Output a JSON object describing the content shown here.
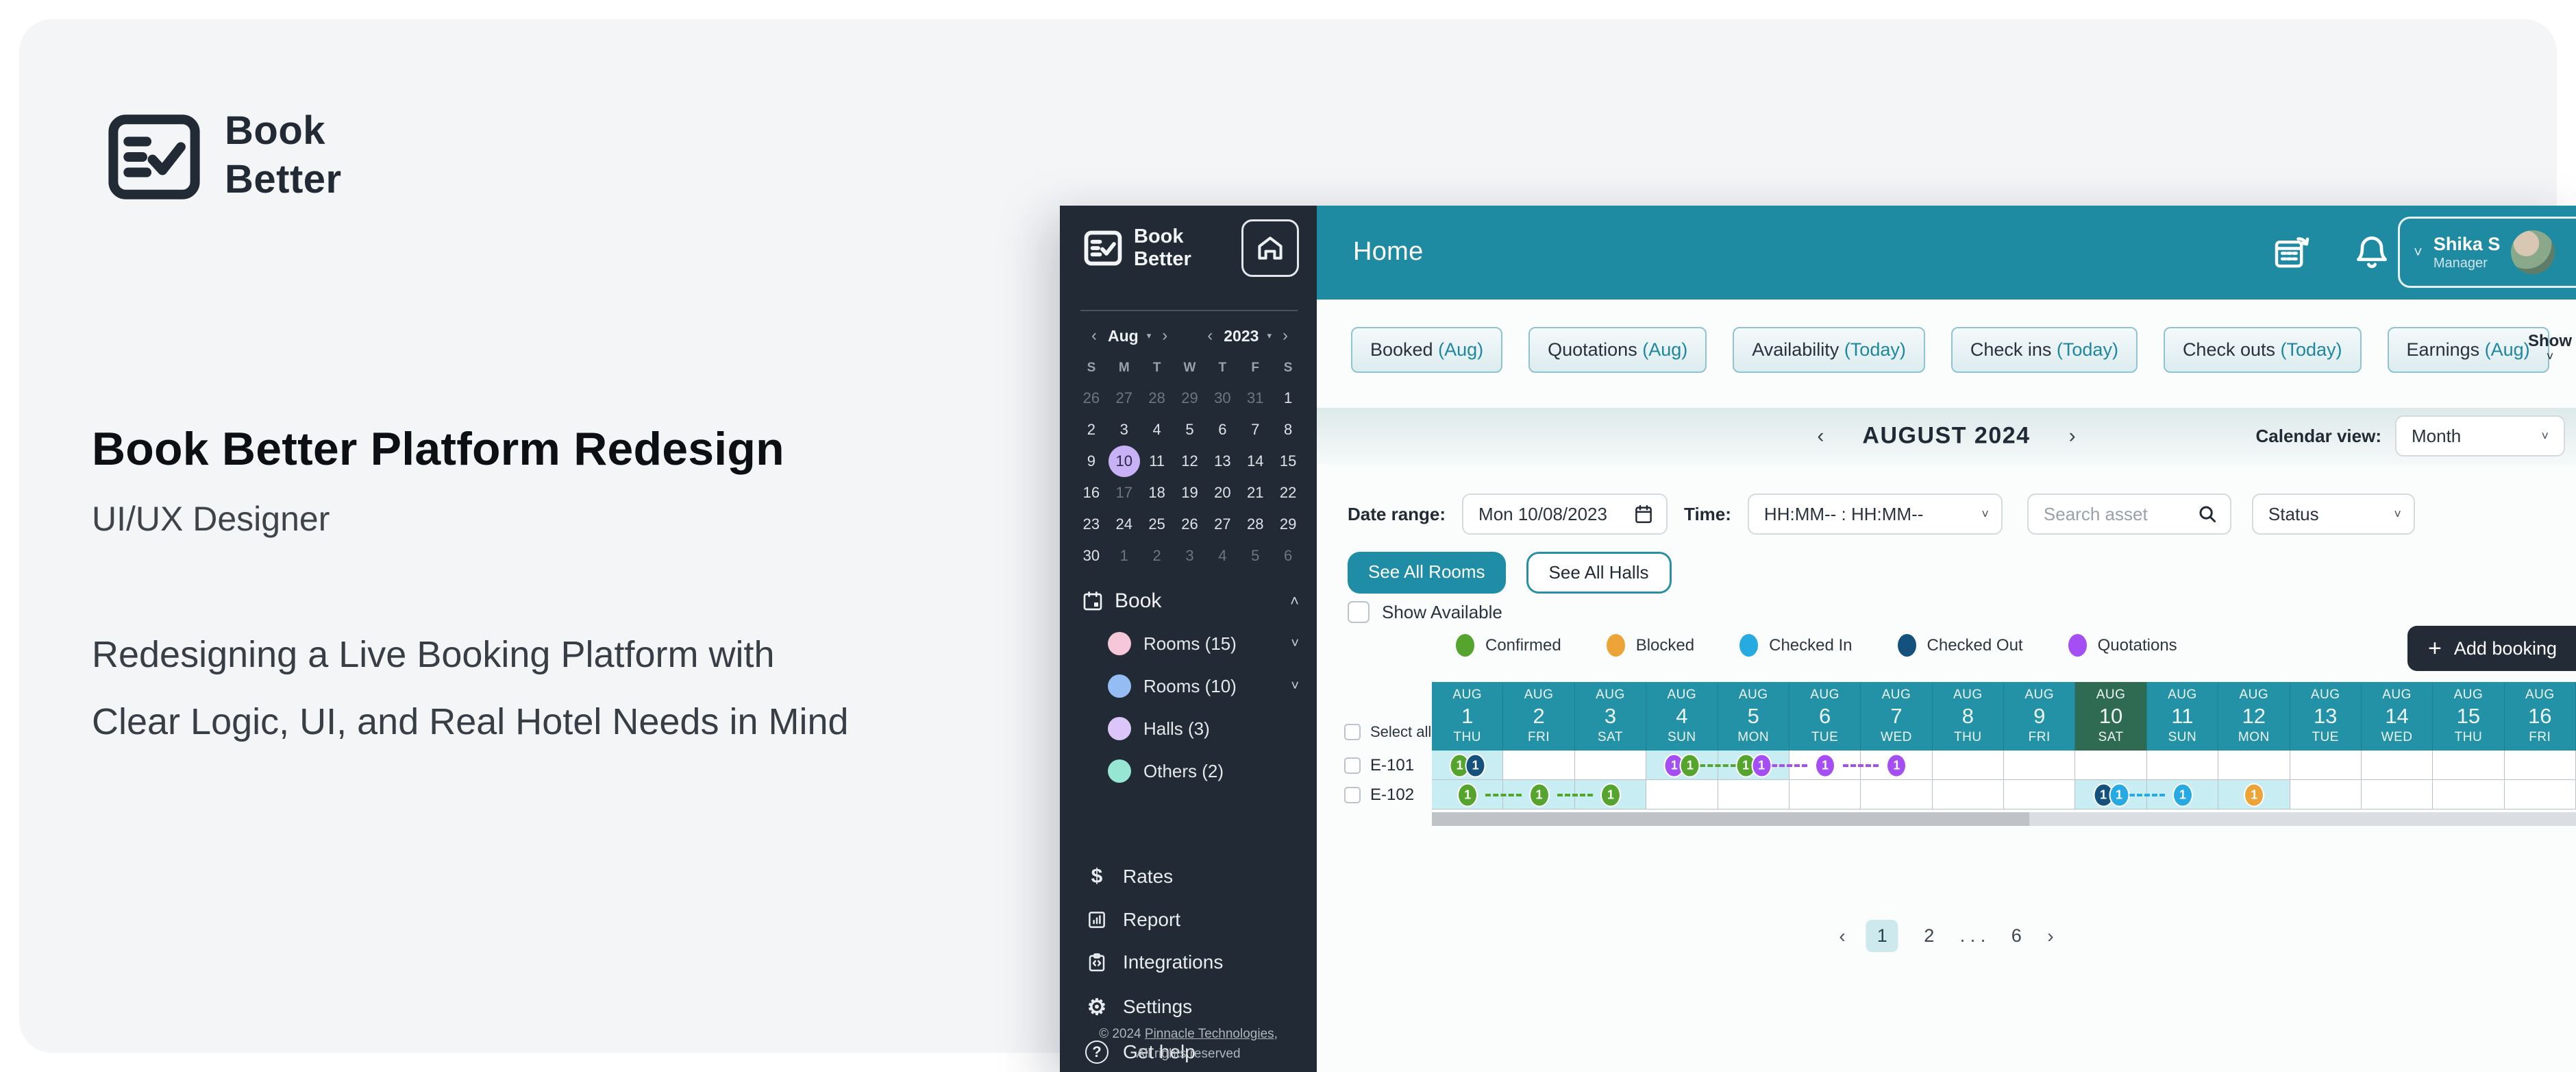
{
  "hero": {
    "brand_line1": "Book",
    "brand_line2": "Better",
    "title": "Book Better Platform Redesign",
    "subtitle": "UI/UX Designer",
    "description_line1": "Redesigning a Live Booking Platform with",
    "description_line2": "Clear Logic, UI, and Real Hotel Needs in Mind"
  },
  "app": {
    "sidebar": {
      "brand_line1": "Book",
      "brand_line2": "Better",
      "mini_calendar": {
        "month": "Aug",
        "year": "2023",
        "prev": "‹",
        "next": "›",
        "day_headers": [
          "S",
          "M",
          "T",
          "W",
          "T",
          "F",
          "S"
        ],
        "weeks": [
          [
            {
              "d": 26,
              "muted": true
            },
            {
              "d": 27,
              "muted": true
            },
            {
              "d": 28,
              "muted": true
            },
            {
              "d": 29,
              "muted": true
            },
            {
              "d": 30,
              "muted": true
            },
            {
              "d": 31,
              "muted": true
            },
            {
              "d": 1
            }
          ],
          [
            {
              "d": 2
            },
            {
              "d": 3
            },
            {
              "d": 4
            },
            {
              "d": 5
            },
            {
              "d": 6
            },
            {
              "d": 7
            },
            {
              "d": 8
            }
          ],
          [
            {
              "d": 9
            },
            {
              "d": 10,
              "selected": true
            },
            {
              "d": 11
            },
            {
              "d": 12
            },
            {
              "d": 13
            },
            {
              "d": 14
            },
            {
              "d": 15
            }
          ],
          [
            {
              "d": 16
            },
            {
              "d": 17,
              "muted": true
            },
            {
              "d": 18
            },
            {
              "d": 19
            },
            {
              "d": 20
            },
            {
              "d": 21
            },
            {
              "d": 22
            }
          ],
          [
            {
              "d": 23
            },
            {
              "d": 24
            },
            {
              "d": 25
            },
            {
              "d": 26
            },
            {
              "d": 27
            },
            {
              "d": 28
            },
            {
              "d": 29
            }
          ],
          [
            {
              "d": 30
            },
            {
              "d": 1,
              "muted": true
            },
            {
              "d": 2,
              "muted": true
            },
            {
              "d": 3,
              "muted": true
            },
            {
              "d": 4,
              "muted": true
            },
            {
              "d": 5,
              "muted": true
            },
            {
              "d": 6,
              "muted": true
            }
          ]
        ]
      },
      "book_section": {
        "label": "Book",
        "collapse_chevron": "˄",
        "items": [
          {
            "label": "Rooms (15)",
            "dot": "#f6c6d9",
            "expandable": true
          },
          {
            "label": "Rooms (10)",
            "dot": "#94bdf4",
            "expandable": true
          },
          {
            "label": "Halls (3)",
            "dot": "#dcc5f8",
            "expandable": false
          },
          {
            "label": "Others (2)",
            "dot": "#97e5d3",
            "expandable": false
          }
        ]
      },
      "menu": [
        {
          "label": "Rates",
          "icon": "rates"
        },
        {
          "label": "Report",
          "icon": "report"
        },
        {
          "label": "Integrations",
          "icon": "integrations"
        },
        {
          "label": "Settings",
          "icon": "settings"
        },
        {
          "label": "Get help",
          "icon": "help"
        }
      ],
      "footer_prefix": "© 2024 ",
      "footer_link": "Pinnacle Technologies",
      "footer_comma": ",",
      "footer_line2": "All rights reserved"
    },
    "topbar": {
      "title": "Home",
      "user_name": "Shika S",
      "user_role": "Manager",
      "chevron": "˅"
    },
    "stat_buttons": [
      {
        "label": "Booked ",
        "suffix": "(Aug)"
      },
      {
        "label": "Quotations ",
        "suffix": "(Aug)"
      },
      {
        "label": "Availability ",
        "suffix": "(Today)"
      },
      {
        "label": "Check ins ",
        "suffix": "(Today)"
      },
      {
        "label": "Check outs ",
        "suffix": "(Today)"
      },
      {
        "label": "Earnings ",
        "suffix": "(Aug)"
      }
    ],
    "show_more_label": "Show",
    "month_nav": {
      "prev": "‹",
      "title": "AUGUST 2024",
      "next": "›"
    },
    "calendar_view": {
      "label": "Calendar view:",
      "value": "Month"
    },
    "filters": {
      "date_label": "Date range:",
      "date_value": "Mon 10/08/2023",
      "time_label": "Time:",
      "time_value": "HH:MM-- : HH:MM--",
      "search_placeholder": "Search asset",
      "status_value": "Status"
    },
    "see_all_rooms": "See All Rooms",
    "see_all_halls": "See All Halls",
    "show_available_label": "Show Available",
    "legend": [
      {
        "label": "Confirmed",
        "color": "#54a42d"
      },
      {
        "label": "Blocked",
        "color": "#eca438"
      },
      {
        "label": "Checked In",
        "color": "#27a9e1"
      },
      {
        "label": "Checked Out",
        "color": "#14527d"
      },
      {
        "label": "Quotations",
        "color": "#a44ef4"
      }
    ],
    "add_booking_label": "Add booking",
    "status_colors": {
      "green": "#54a42d",
      "orange": "#eca438",
      "lightblue": "#27a9e1",
      "darkblue": "#14527d",
      "purple": "#a44ef4"
    },
    "grid": {
      "select_all_label": "Select all",
      "month_short": "AUG",
      "days": [
        {
          "num": 1,
          "dow": "THU"
        },
        {
          "num": 2,
          "dow": "FRI"
        },
        {
          "num": 3,
          "dow": "SAT"
        },
        {
          "num": 4,
          "dow": "SUN"
        },
        {
          "num": 5,
          "dow": "MON"
        },
        {
          "num": 6,
          "dow": "TUE"
        },
        {
          "num": 7,
          "dow": "WED"
        },
        {
          "num": 8,
          "dow": "THU"
        },
        {
          "num": 9,
          "dow": "FRI"
        },
        {
          "num": 10,
          "dow": "SAT",
          "today": true
        },
        {
          "num": 11,
          "dow": "SUN"
        },
        {
          "num": 12,
          "dow": "MON"
        },
        {
          "num": 13,
          "dow": "TUE"
        },
        {
          "num": 14,
          "dow": "WED"
        },
        {
          "num": 15,
          "dow": "THU"
        },
        {
          "num": 16,
          "dow": "FRI"
        }
      ],
      "rows": [
        {
          "label": "E-101",
          "highlight_cols": [
            1,
            4,
            5
          ],
          "badges": [
            {
              "col": 1,
              "colors": [
                "green",
                "darkblue"
              ],
              "value": "1"
            },
            {
              "col": 4,
              "colors": [
                "purple",
                "green"
              ],
              "value": "1"
            },
            {
              "col": 5,
              "colors": [
                "green",
                "purple"
              ],
              "value": "1"
            },
            {
              "col": 6,
              "colors": [
                "purple"
              ],
              "value": "1"
            },
            {
              "col": 7,
              "colors": [
                "purple"
              ],
              "value": "1"
            }
          ],
          "links": [
            {
              "from": 4,
              "to": 5,
              "color": "green"
            },
            {
              "from": 5,
              "to": 6,
              "color": "purple"
            },
            {
              "from": 6,
              "to": 7,
              "color": "purple"
            }
          ]
        },
        {
          "label": "E-102",
          "highlight_cols": [
            1,
            2,
            3,
            10,
            11,
            12
          ],
          "badges": [
            {
              "col": 1,
              "colors": [
                "green"
              ],
              "value": "1"
            },
            {
              "col": 2,
              "colors": [
                "green"
              ],
              "value": "1"
            },
            {
              "col": 3,
              "colors": [
                "green"
              ],
              "value": "1"
            },
            {
              "col": 10,
              "colors": [
                "darkblue",
                "lightblue"
              ],
              "value": "1"
            },
            {
              "col": 11,
              "colors": [
                "lightblue"
              ],
              "value": "1"
            },
            {
              "col": 12,
              "colors": [
                "orange"
              ],
              "value": "1"
            }
          ],
          "links": [
            {
              "from": 1,
              "to": 2,
              "color": "green"
            },
            {
              "from": 2,
              "to": 3,
              "color": "green"
            },
            {
              "from": 10,
              "to": 11,
              "color": "lightblue"
            }
          ]
        }
      ]
    },
    "pagination": {
      "prev": "‹",
      "items": [
        "1",
        "2",
        ". . .",
        "6"
      ],
      "active": "1",
      "next": "›"
    }
  }
}
